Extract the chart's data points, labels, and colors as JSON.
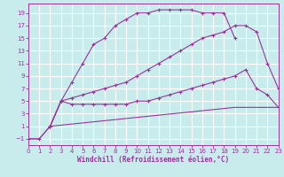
{
  "background_color": "#c8ecec",
  "grid_color": "#ffffff",
  "line_color": "#993399",
  "xlabel": "Windchill (Refroidissement éolien,°C)",
  "xlim": [
    0,
    23
  ],
  "ylim": [
    -2,
    20.5
  ],
  "xticks": [
    0,
    1,
    2,
    3,
    4,
    5,
    6,
    7,
    8,
    9,
    10,
    11,
    12,
    13,
    14,
    15,
    16,
    17,
    18,
    19,
    20,
    21,
    22,
    23
  ],
  "yticks": [
    -1,
    1,
    3,
    5,
    7,
    9,
    11,
    13,
    15,
    17,
    19
  ],
  "curves": [
    {
      "x": [
        0,
        1,
        2,
        3,
        4,
        5,
        6,
        7,
        8,
        9,
        10,
        11,
        12,
        13,
        14,
        15,
        16,
        17,
        18,
        19
      ],
      "y": [
        -1,
        -1,
        1,
        5,
        8,
        11,
        14,
        15,
        17,
        18,
        19,
        19,
        19.5,
        19.5,
        19.5,
        19.5,
        19,
        19,
        19,
        15
      ],
      "has_markers": true
    },
    {
      "x": [
        2,
        3,
        4,
        5,
        6,
        7,
        8,
        9,
        10,
        11,
        12,
        13,
        14,
        15,
        16,
        17,
        18,
        19,
        20,
        21,
        22,
        23
      ],
      "y": [
        1,
        5,
        5.5,
        6,
        6.5,
        7,
        7.5,
        8,
        9,
        10,
        11,
        12,
        13,
        14,
        15,
        15.5,
        16,
        17,
        17,
        16,
        11,
        7
      ],
      "has_markers": true
    },
    {
      "x": [
        2,
        3,
        4,
        5,
        6,
        7,
        8,
        9,
        10,
        11,
        12,
        13,
        14,
        15,
        16,
        17,
        18,
        19,
        20,
        21,
        22,
        23
      ],
      "y": [
        1,
        5,
        4.5,
        4.5,
        4.5,
        4.5,
        4.5,
        4.5,
        5,
        5,
        5.5,
        6,
        6.5,
        7,
        7.5,
        8,
        8.5,
        9,
        10,
        7,
        6,
        4
      ],
      "has_markers": true
    },
    {
      "x": [
        0,
        1,
        2,
        19,
        20,
        21,
        22,
        23
      ],
      "y": [
        -1,
        -1,
        1,
        4,
        4,
        4,
        4,
        4
      ],
      "has_markers": false
    }
  ]
}
